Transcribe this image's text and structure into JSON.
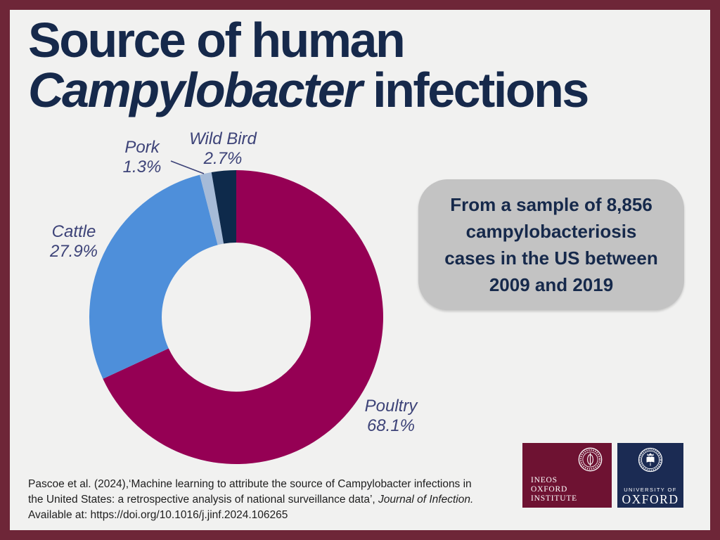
{
  "colors": {
    "frame_border": "#6E2638",
    "background": "#F1F1F0",
    "title_text": "#16294B",
    "chart_label_text": "#3D4378",
    "infobox_background": "#C3C3C3",
    "infobox_text": "#16294B",
    "citation_text": "#1E1E1E",
    "ineos_logo_background": "#6E1232",
    "oxford_logo_background": "#1B2B53"
  },
  "title": {
    "line1": "Source of human",
    "line2_italic": "Campylobacter",
    "line2_rest": " infections"
  },
  "chart_data": {
    "type": "pie",
    "subtype": "donut",
    "title": "Source of human Campylobacter infections",
    "unit": "%",
    "start_angle_deg": 0,
    "direction": "clockwise",
    "legend_position": "labels-around-chart",
    "slices": [
      {
        "label": "Poultry",
        "value": 68.1,
        "pct": "68.1%",
        "color": "#950054"
      },
      {
        "label": "Cattle",
        "value": 27.9,
        "pct": "27.9%",
        "color": "#4E8FDA"
      },
      {
        "label": "Pork",
        "value": 1.3,
        "pct": "1.3%",
        "color": "#A6BBD8"
      },
      {
        "label": "Wild Bird",
        "value": 2.7,
        "pct": "2.7%",
        "color": "#0E2A4B"
      }
    ]
  },
  "info_box": {
    "lines": [
      "From a sample of 8,856",
      "campylobacteriosis",
      "cases in the US between",
      "2009 and 2019"
    ]
  },
  "citation": {
    "line1": "Pascoe et al. (2024),‘Machine learning to attribute the source of Campylobacter infections in",
    "line2_normal": "the United States: a retrospective analysis of national surveillance data’, ",
    "line2_italic": "Journal of Infection.",
    "line3": "Available at: https://doi.org/10.1016/j.jinf.2024.106265"
  },
  "logos": {
    "ineos": {
      "lines": [
        "INEOS",
        "OXFORD",
        "INSTITUTE"
      ]
    },
    "oxford": {
      "line1": "UNIVERSITY OF",
      "line2": "OXFORD"
    }
  }
}
